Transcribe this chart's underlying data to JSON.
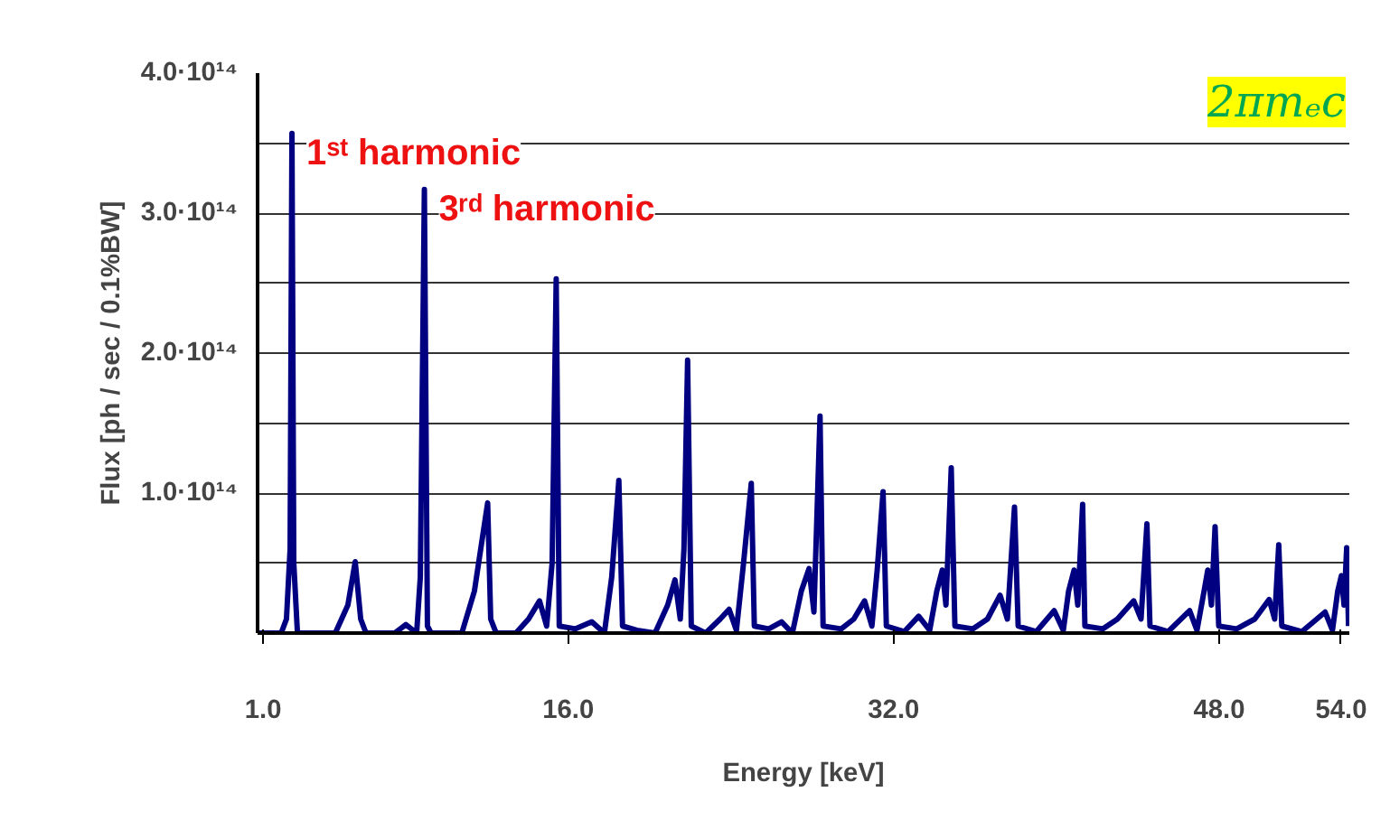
{
  "chart_data": {
    "type": "line",
    "xlabel": "Energy [keV]",
    "ylabel": "Flux [ph / sec / 0.1%BW]",
    "xlim": [
      0.73,
      54.4
    ],
    "xticks": [
      {
        "value": 1,
        "label": "1.0"
      },
      {
        "value": 16,
        "label": "16.0"
      },
      {
        "value": 32,
        "label": "32.0"
      },
      {
        "value": 48,
        "label": "48.0"
      },
      {
        "value": 54,
        "label": "54.0"
      }
    ],
    "ylim": [
      0,
      400000000000000.0
    ],
    "yticks": [
      {
        "value": 0,
        "label": null
      },
      {
        "value": 50000000000000.0,
        "label": null
      },
      {
        "value": 100000000000000.0,
        "label": "1.0·10¹⁴"
      },
      {
        "value": 150000000000000.0,
        "label": null
      },
      {
        "value": 200000000000000.0,
        "label": "2.0·10¹⁴"
      },
      {
        "value": 250000000000000.0,
        "label": null
      },
      {
        "value": 300000000000000.0,
        "label": "3.0·10¹⁴"
      },
      {
        "value": 350000000000000.0,
        "label": null
      },
      {
        "value": 400000000000000.0,
        "label": "4.0·10¹⁴"
      }
    ],
    "grid": "y",
    "marker": "none",
    "line_style": "solid",
    "x": [
      0.73,
      1.89,
      2.15,
      2.33,
      2.42,
      2.51,
      2.69,
      4.55,
      5.17,
      5.53,
      5.8,
      6.06,
      7.48,
      8.02,
      8.55,
      8.73,
      8.93,
      9.08,
      9.26,
      10.77,
      11.39,
      12.04,
      12.19,
      12.46,
      13.43,
      14.05,
      14.59,
      14.94,
      15.21,
      15.41,
      15.56,
      16.36,
      17.16,
      17.78,
      18.14,
      18.49,
      18.67,
      19.38,
      20.27,
      20.89,
      21.25,
      21.51,
      21.69,
      21.87,
      22.05,
      22.76,
      23.47,
      23.91,
      24.27,
      24.62,
      25.0,
      25.15,
      25.86,
      26.49,
      27.02,
      27.46,
      27.84,
      28.08,
      28.38,
      28.53,
      29.42,
      30.04,
      30.57,
      30.93,
      31.19,
      31.48,
      31.64,
      32.52,
      33.23,
      33.77,
      34.12,
      34.39,
      34.57,
      34.83,
      35.01,
      35.9,
      36.61,
      37.23,
      37.59,
      37.94,
      38.12,
      39.01,
      39.89,
      40.34,
      40.6,
      40.87,
      41.05,
      41.29,
      41.4,
      42.29,
      43.0,
      43.8,
      44.16,
      44.45,
      44.6,
      45.49,
      46.55,
      46.91,
      47.26,
      47.44,
      47.62,
      47.8,
      47.98,
      48.86,
      49.75,
      50.46,
      50.73,
      50.93,
      51.08,
      52.06,
      53.21,
      53.57,
      53.83,
      54.01,
      54.14,
      54.27,
      54.36
    ],
    "series": [
      {
        "color": "#000080",
        "values": [
          0,
          0,
          10000000000000.0,
          60000000000000.0,
          357000000000000.0,
          50000000000000.0,
          0,
          0,
          20000000000000.0,
          51000000000000.0,
          10000000000000.0,
          0,
          0,
          6000000000000.0,
          0,
          40000000000000.0,
          317000000000000.0,
          5000000000000.0,
          0,
          0,
          30000000000000.0,
          93000000000000.0,
          10000000000000.0,
          0,
          0,
          10000000000000.0,
          23000000000000.0,
          5000000000000.0,
          50000000000000.0,
          253000000000000.0,
          5000000000000.0,
          3000000000000.0,
          8000000000000.0,
          0,
          40000000000000.0,
          109000000000000.0,
          5000000000000.0,
          2000000000000.0,
          0,
          20000000000000.0,
          38000000000000.0,
          10000000000000.0,
          60000000000000.0,
          195000000000000.0,
          5000000000000.0,
          0,
          10000000000000.0,
          17000000000000.0,
          2000000000000.0,
          50000000000000.0,
          107000000000000.0,
          5000000000000.0,
          3000000000000.0,
          8000000000000.0,
          0,
          30000000000000.0,
          46000000000000.0,
          15000000000000.0,
          155000000000000.0,
          5000000000000.0,
          3000000000000.0,
          10000000000000.0,
          23000000000000.0,
          5000000000000.0,
          45000000000000.0,
          101000000000000.0,
          5000000000000.0,
          1000000000000.0,
          12000000000000.0,
          2000000000000.0,
          30000000000000.0,
          45000000000000.0,
          20000000000000.0,
          118000000000000.0,
          5000000000000.0,
          3000000000000.0,
          10000000000000.0,
          27000000000000.0,
          10000000000000.0,
          90000000000000.0,
          5000000000000.0,
          1000000000000.0,
          16000000000000.0,
          2000000000000.0,
          30000000000000.0,
          45000000000000.0,
          20000000000000.0,
          92000000000000.0,
          5000000000000.0,
          3000000000000.0,
          10000000000000.0,
          23000000000000.0,
          10000000000000.0,
          78000000000000.0,
          5000000000000.0,
          1000000000000.0,
          16000000000000.0,
          2000000000000.0,
          30000000000000.0,
          45000000000000.0,
          20000000000000.0,
          76000000000000.0,
          5000000000000.0,
          3000000000000.0,
          10000000000000.0,
          24000000000000.0,
          10000000000000.0,
          63000000000000.0,
          5000000000000.0,
          1000000000000.0,
          15000000000000.0,
          2000000000000.0,
          30000000000000.0,
          41000000000000.0,
          20000000000000.0,
          61000000000000.0,
          5000000000000.0
        ]
      }
    ],
    "annotations": [
      {
        "text": "1ˢᵗ harmonic",
        "x": 2.42,
        "y": 357000000000000.0
      },
      {
        "text": "3ʳᵈ harmonic",
        "x": 8.93,
        "y": 317000000000000.0
      },
      "2πmₑc"
    ]
  }
}
